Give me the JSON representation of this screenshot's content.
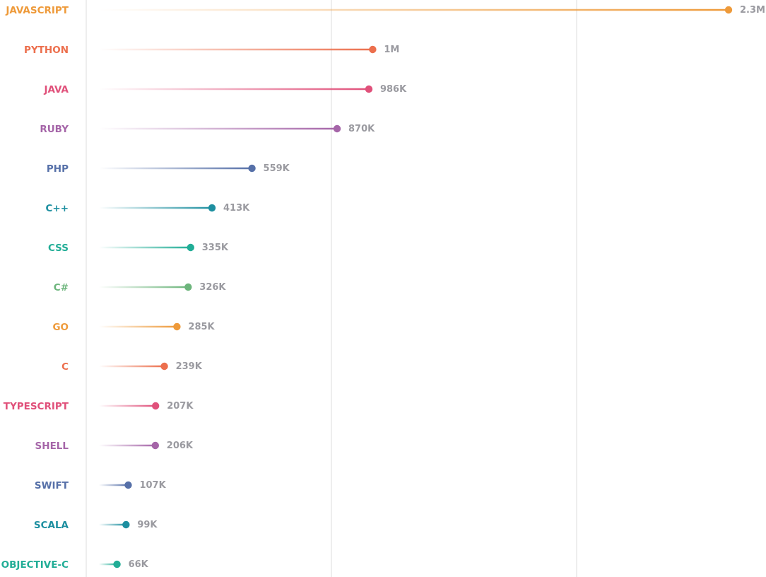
{
  "chart_data": {
    "type": "lollipop-bar",
    "title": "",
    "xlabel": "",
    "ylabel": "",
    "xlim": [
      0,
      2300000
    ],
    "grid": "vertical",
    "categories": [
      "JAVASCRIPT",
      "PYTHON",
      "JAVA",
      "RUBY",
      "PHP",
      "C++",
      "CSS",
      "C#",
      "GO",
      "C",
      "TYPESCRIPT",
      "SHELL",
      "SWIFT",
      "SCALA",
      "OBJECTIVE-C"
    ],
    "values": [
      2300000,
      1000000,
      986000,
      870000,
      559000,
      413000,
      335000,
      326000,
      285000,
      239000,
      207000,
      206000,
      107000,
      99000,
      66000
    ],
    "value_labels": [
      "2.3M",
      "1M",
      "986K",
      "870K",
      "559K",
      "413K",
      "335K",
      "326K",
      "285K",
      "239K",
      "207K",
      "206K",
      "107K",
      "99K",
      "66K"
    ],
    "colors": [
      "#ee9a3a",
      "#ec6f4d",
      "#e0507a",
      "#a565a8",
      "#5670a8",
      "#1d8fa0",
      "#21ad96",
      "#6db57c",
      "#ee9a3a",
      "#ec6f4d",
      "#e0507a",
      "#a565a8",
      "#5670a8",
      "#1d8fa0",
      "#21ad96"
    ]
  }
}
